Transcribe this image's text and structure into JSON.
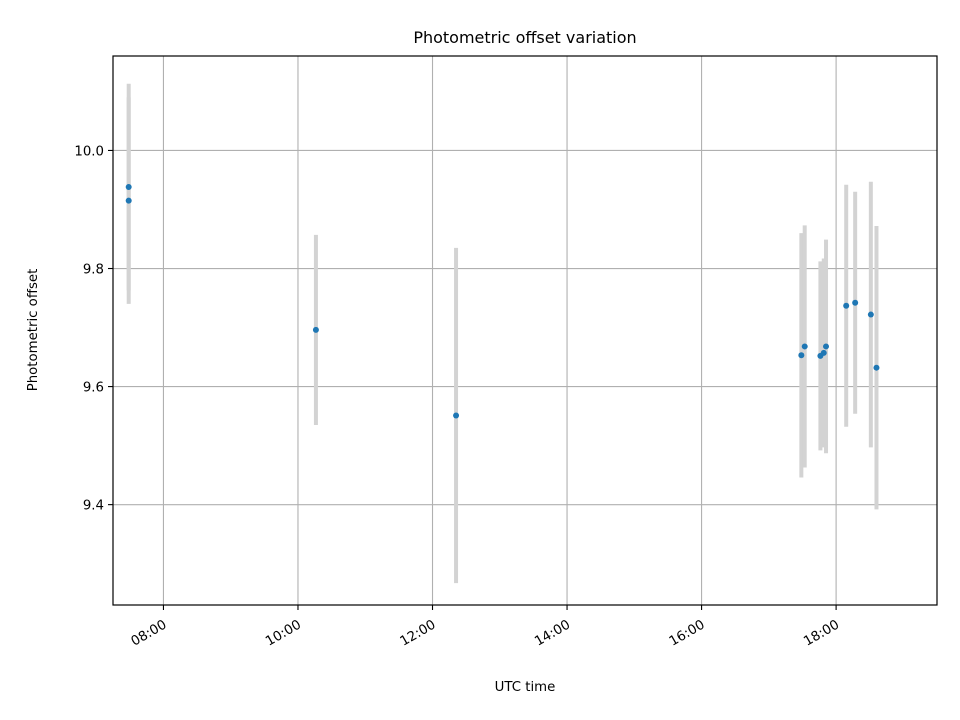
{
  "chart_data": {
    "type": "scatter",
    "title": "Photometric offset variation",
    "xlabel": "UTC time",
    "ylabel": "Photometric offset",
    "x_ticks": [
      "08:00",
      "10:00",
      "12:00",
      "14:00",
      "16:00",
      "18:00"
    ],
    "y_ticks": [
      "9.4",
      "9.6",
      "9.8",
      "10.0"
    ],
    "xlim": [
      "07:15",
      "19:30"
    ],
    "ylim": [
      9.23,
      10.16
    ],
    "grid": true,
    "marker_color": "#1f77b4",
    "errorbar_color": "#d3d3d3",
    "points": [
      {
        "x": "07:29",
        "y": 9.938,
        "yerr": 0.175
      },
      {
        "x": "07:29",
        "y": 9.915,
        "yerr": 0.175
      },
      {
        "x": "10:16",
        "y": 9.696,
        "yerr": 0.161
      },
      {
        "x": "12:21",
        "y": 9.551,
        "yerr": 0.284
      },
      {
        "x": "17:29",
        "y": 9.653,
        "yerr": 0.207
      },
      {
        "x": "17:32",
        "y": 9.668,
        "yerr": 0.205
      },
      {
        "x": "17:46",
        "y": 9.652,
        "yerr": 0.16
      },
      {
        "x": "17:49",
        "y": 9.657,
        "yerr": 0.16
      },
      {
        "x": "17:51",
        "y": 9.668,
        "yerr": 0.181
      },
      {
        "x": "18:09",
        "y": 9.737,
        "yerr": 0.205
      },
      {
        "x": "18:17",
        "y": 9.742,
        "yerr": 0.188
      },
      {
        "x": "18:31",
        "y": 9.722,
        "yerr": 0.225
      },
      {
        "x": "18:36",
        "y": 9.632,
        "yerr": 0.24
      }
    ]
  }
}
